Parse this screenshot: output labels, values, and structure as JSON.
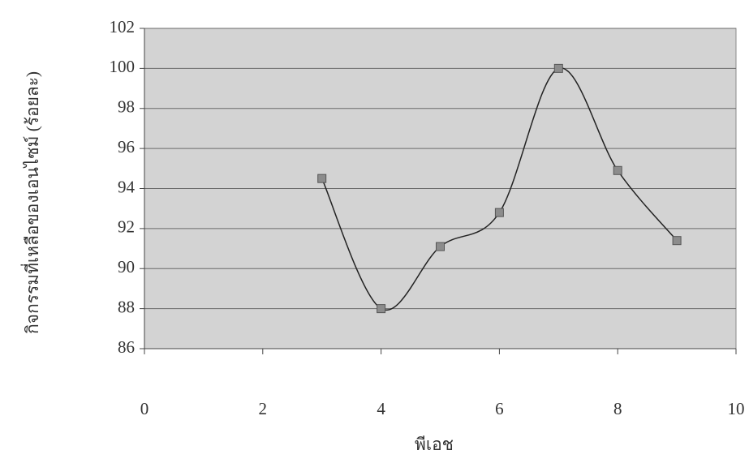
{
  "chart_data": {
    "type": "scatter",
    "x_label": "พีเอช",
    "y_label": "กิจกรรมที่เหลือของเอนไซม์ (ร้อยละ)",
    "x": [
      3,
      4,
      5,
      6,
      7,
      8,
      9
    ],
    "series": [
      {
        "values": [
          94.5,
          88,
          91.1,
          92.8,
          100,
          94.9,
          91.4
        ],
        "color": "#222222",
        "marker_color": "#8c8c8c"
      }
    ],
    "xlim": [
      0,
      10
    ],
    "ylim": [
      86,
      102
    ],
    "xticks": [
      0,
      2,
      4,
      6,
      8,
      10
    ],
    "yticks": [
      86,
      88,
      90,
      92,
      94,
      96,
      98,
      100,
      102
    ],
    "grid": true,
    "smooth": true,
    "plot_background": "#d3d3d3"
  }
}
